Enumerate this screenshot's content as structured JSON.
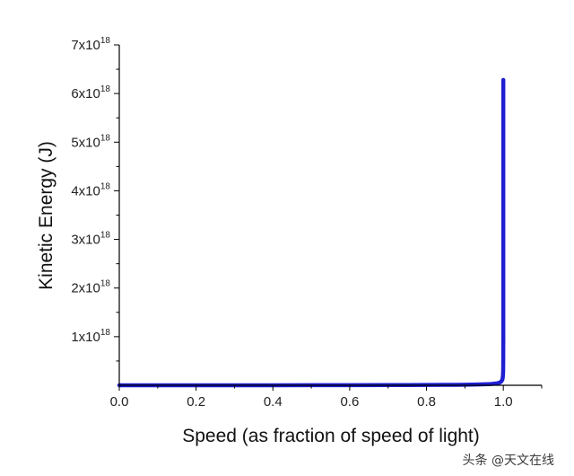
{
  "chart_data": {
    "type": "line",
    "title": "",
    "xlabel": "Speed (as fraction of speed of light)",
    "ylabel": "Kinetic Energy (J)",
    "xlim": [
      0.0,
      1.1
    ],
    "ylim": [
      0,
      7e+18
    ],
    "x_ticks": [
      0.0,
      0.2,
      0.4,
      0.6,
      0.8,
      1.0
    ],
    "x_tick_labels": [
      "0.0",
      "0.2",
      "0.4",
      "0.6",
      "0.8",
      "1.0"
    ],
    "y_ticks": [
      1e+18,
      2e+18,
      3e+18,
      4e+18,
      5e+18,
      6e+18,
      7e+18
    ],
    "y_tick_labels": [
      {
        "base": "1x10",
        "exp": "18"
      },
      {
        "base": "2x10",
        "exp": "18"
      },
      {
        "base": "3x10",
        "exp": "18"
      },
      {
        "base": "4x10",
        "exp": "18"
      },
      {
        "base": "5x10",
        "exp": "18"
      },
      {
        "base": "6x10",
        "exp": "18"
      },
      {
        "base": "7x10",
        "exp": "18"
      }
    ],
    "grid": false,
    "series": [
      {
        "color": "#1f1fd2",
        "x": [
          0.0,
          0.1,
          0.2,
          0.3,
          0.4,
          0.5,
          0.6,
          0.7,
          0.75,
          0.8,
          0.85,
          0.9,
          0.93,
          0.95,
          0.96,
          0.97,
          0.98,
          0.985,
          0.99,
          0.993,
          0.995,
          0.997,
          0.998,
          0.999,
          0.9995,
          0.99975,
          0.9999,
          0.99995
        ],
        "y": [
          0,
          45000000000000.0,
          180000000000000.0,
          430000000000000.0,
          820000000000000.0,
          1390000000000000.0,
          2250000000000000.0,
          3600000000000000.0,
          4600000000000000.0,
          6000000000000000.0,
          8100000000000000.0,
          1.16e+16,
          1.55e+16,
          1.98e+16,
          2.31e+16,
          2.8e+16,
          3.62e+16,
          4.32e+16,
          5.48e+16,
          6.74e+16,
          8.1e+16,
          1.07e+17,
          1.33e+17,
          1.92e+17,
          2.75e+17,
          3.92e+17,
          6.27e+17,
          8.9e+17
        ]
      },
      {
        "color": "#1f1fd2",
        "x": [
          1.0,
          1.0
        ],
        "y": [
          8.9e+17,
          6.28e+18
        ]
      }
    ]
  },
  "watermark": "头条 @天文在线"
}
